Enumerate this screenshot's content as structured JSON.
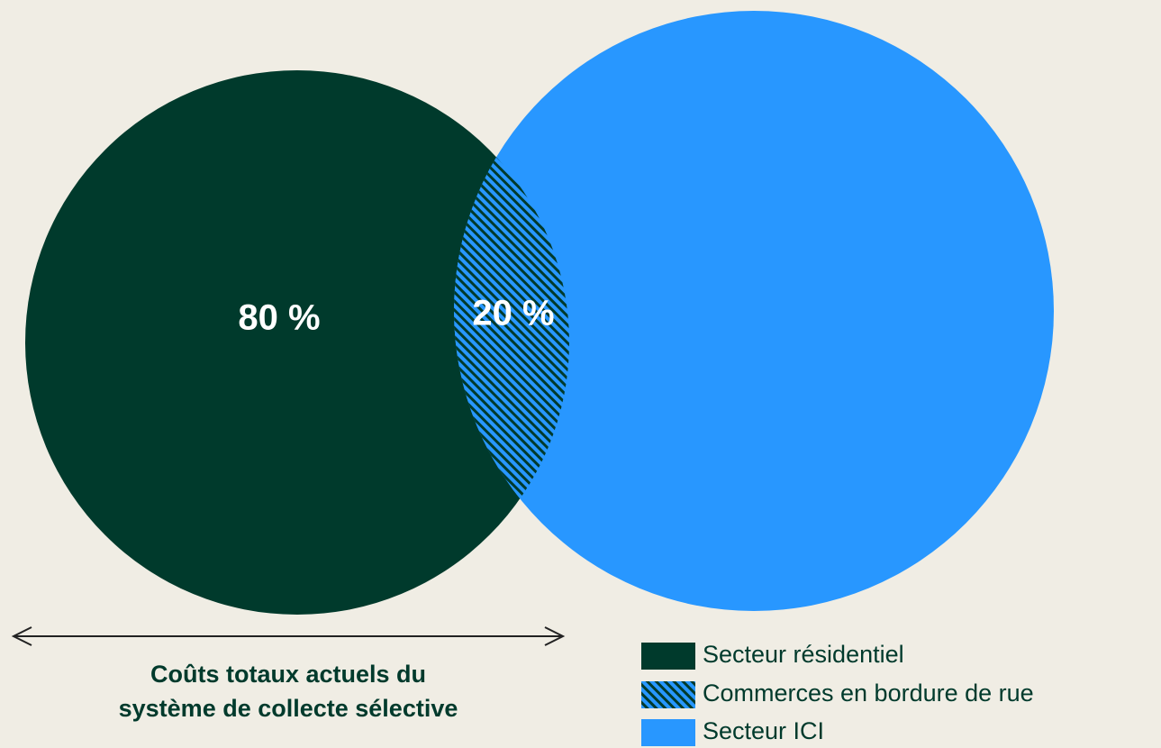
{
  "diagram": {
    "circles": [
      {
        "label": "80 %",
        "color": "#003a2c"
      },
      {
        "color": "#2897ff"
      }
    ],
    "overlap": {
      "label": "20 %"
    },
    "caption": [
      "Coûts totaux actuels du",
      "système de collecte sélective"
    ],
    "legend": [
      {
        "name": "Secteur résidentiel",
        "color": "#003a2c"
      },
      {
        "name": "Commerces en bordure de rue",
        "color": "hatch"
      },
      {
        "name": "Secteur ICI",
        "color": "#2897ff"
      }
    ]
  }
}
